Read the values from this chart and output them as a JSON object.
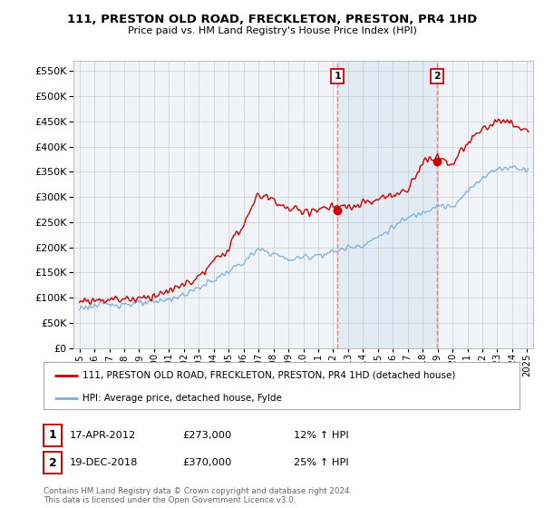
{
  "title": "111, PRESTON OLD ROAD, FRECKLETON, PRESTON, PR4 1HD",
  "subtitle": "Price paid vs. HM Land Registry's House Price Index (HPI)",
  "hpi_label": "HPI: Average price, detached house, Fylde",
  "property_label": "111, PRESTON OLD ROAD, FRECKLETON, PRESTON, PR4 1HD (detached house)",
  "transaction1_date": "17-APR-2012",
  "transaction1_price": "£273,000",
  "transaction1_hpi": "12% ↑ HPI",
  "transaction1_year": 2012.29,
  "transaction1_value": 273000,
  "transaction2_date": "19-DEC-2018",
  "transaction2_price": "£370,000",
  "transaction2_hpi": "25% ↑ HPI",
  "transaction2_year": 2018.96,
  "transaction2_value": 370000,
  "property_color": "#cc0000",
  "hpi_color": "#7aafdd",
  "ylim": [
    0,
    570000
  ],
  "yticks": [
    0,
    50000,
    100000,
    150000,
    200000,
    250000,
    300000,
    350000,
    400000,
    450000,
    500000,
    550000
  ],
  "footer": "Contains HM Land Registry data © Crown copyright and database right 2024.\nThis data is licensed under the Open Government Licence v3.0.",
  "background_color": "#ffffff",
  "grid_color": "#cccccc",
  "plot_bg": "#f0f4f8"
}
